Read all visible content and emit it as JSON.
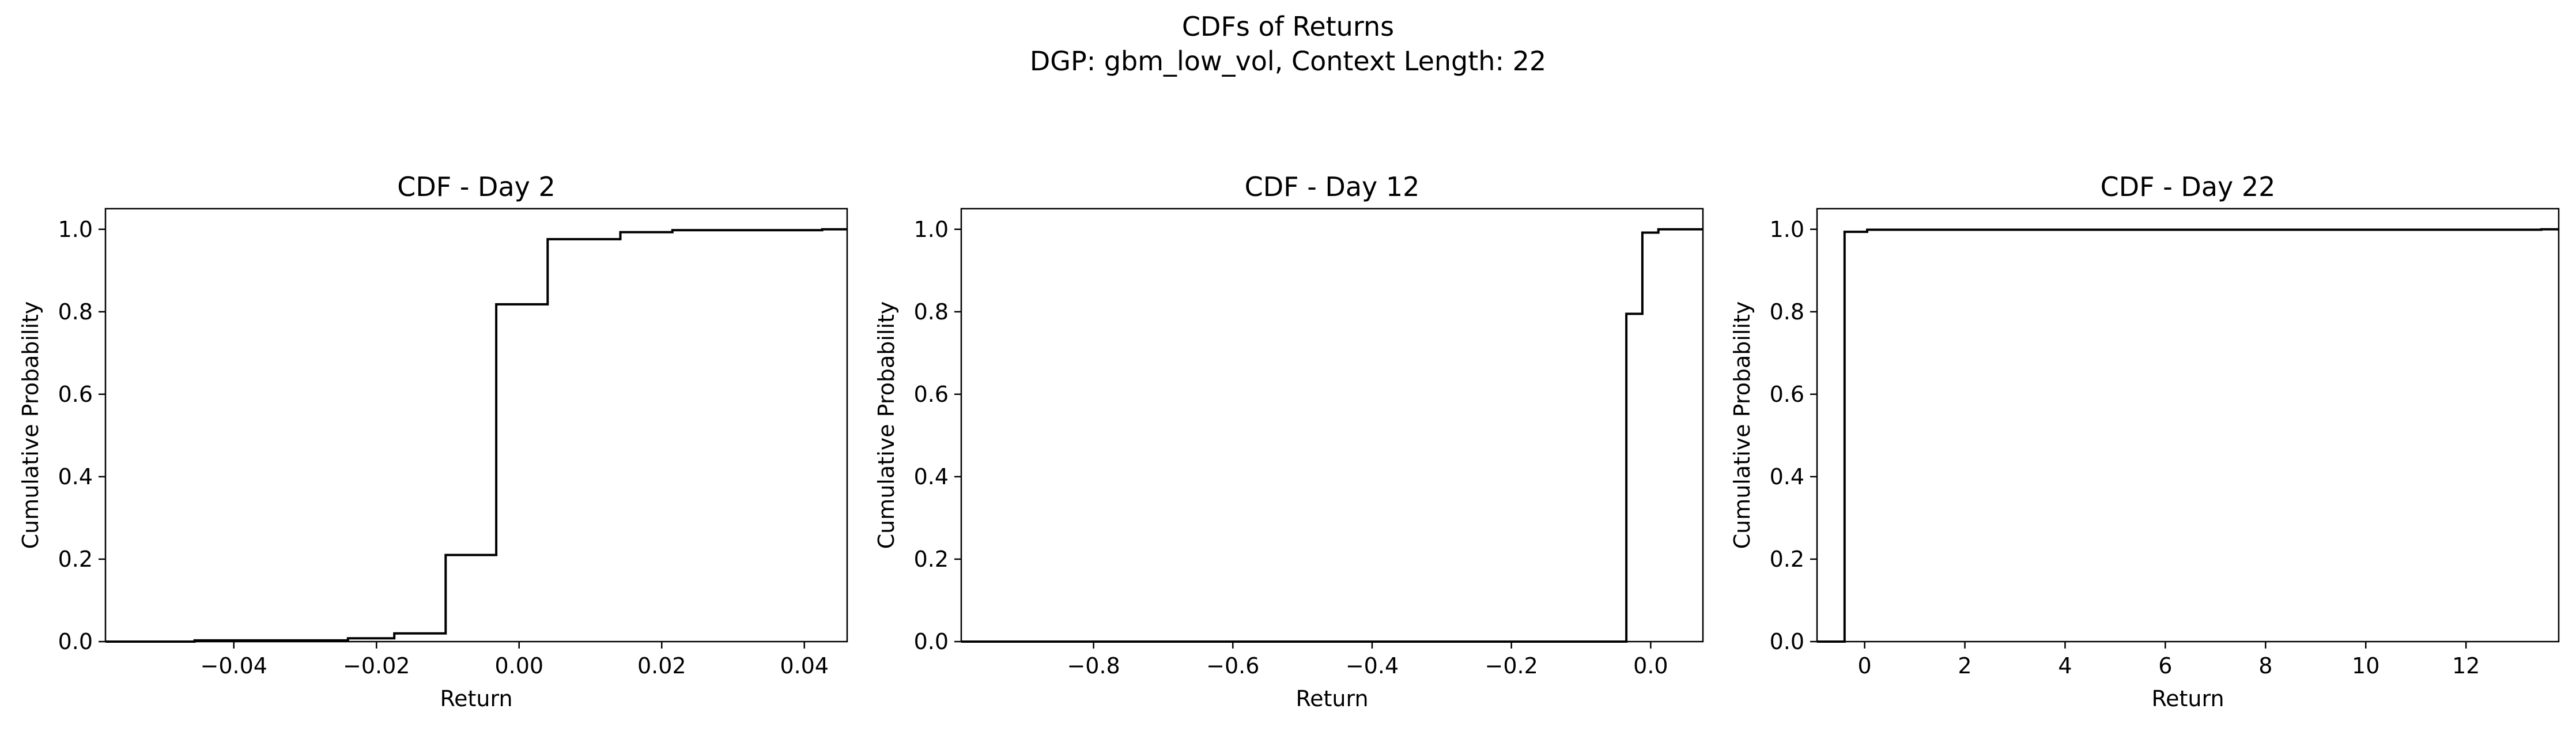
{
  "figure": {
    "suptitle_line1": "CDFs of Returns",
    "suptitle_line2": "DGP: gbm_low_vol, Context Length: 22"
  },
  "chart_data": [
    {
      "type": "line",
      "drawstyle": "steps-post",
      "title": "CDF - Day 2",
      "xlabel": "Return",
      "ylabel": "Cumulative Probability",
      "xlim": [
        -0.058,
        0.046
      ],
      "ylim": [
        0.0,
        1.05
      ],
      "xticks": [
        -0.04,
        -0.02,
        0.0,
        0.02,
        0.04
      ],
      "xtick_labels": [
        "−0.04",
        "−0.02",
        "0.00",
        "0.02",
        "0.04"
      ],
      "yticks": [
        0.0,
        0.2,
        0.4,
        0.6,
        0.8,
        1.0
      ],
      "ytick_labels": [
        "0.0",
        "0.2",
        "0.4",
        "0.6",
        "0.8",
        "1.0"
      ],
      "grid": false,
      "color": "#000000",
      "x": [
        -0.058,
        -0.0455,
        -0.024,
        -0.0175,
        -0.0103,
        -0.0032,
        0.004,
        0.0142,
        0.0215,
        0.0425,
        0.046
      ],
      "y": [
        0.0,
        0.003,
        0.008,
        0.02,
        0.21,
        0.818,
        0.976,
        0.993,
        0.998,
        1.0,
        1.0
      ]
    },
    {
      "type": "line",
      "drawstyle": "steps-post",
      "title": "CDF - Day 12",
      "xlabel": "Return",
      "ylabel": "Cumulative Probability",
      "xlim": [
        -0.99,
        0.075
      ],
      "ylim": [
        0.0,
        1.05
      ],
      "xticks": [
        -0.8,
        -0.6,
        -0.4,
        -0.2,
        0.0
      ],
      "xtick_labels": [
        "−0.8",
        "−0.6",
        "−0.4",
        "−0.2",
        "0.0"
      ],
      "yticks": [
        0.0,
        0.2,
        0.4,
        0.6,
        0.8,
        1.0
      ],
      "ytick_labels": [
        "0.0",
        "0.2",
        "0.4",
        "0.6",
        "0.8",
        "1.0"
      ],
      "grid": false,
      "color": "#000000",
      "x": [
        -0.99,
        -0.035,
        -0.012,
        0.011,
        0.075
      ],
      "y": [
        0.0,
        0.795,
        0.992,
        1.0,
        1.0
      ]
    },
    {
      "type": "line",
      "drawstyle": "steps-post",
      "title": "CDF - Day 22",
      "xlabel": "Return",
      "ylabel": "Cumulative Probability",
      "xlim": [
        -0.95,
        13.85
      ],
      "ylim": [
        0.0,
        1.05
      ],
      "xticks": [
        0,
        2,
        4,
        6,
        8,
        10,
        12
      ],
      "xtick_labels": [
        "0",
        "2",
        "4",
        "6",
        "8",
        "10",
        "12"
      ],
      "yticks": [
        0.0,
        0.2,
        0.4,
        0.6,
        0.8,
        1.0
      ],
      "ytick_labels": [
        "0.0",
        "0.2",
        "0.4",
        "0.6",
        "0.8",
        "1.0"
      ],
      "grid": false,
      "color": "#000000",
      "x": [
        -0.95,
        -0.4,
        0.05,
        13.5,
        13.85
      ],
      "y": [
        0.0,
        0.994,
        0.999,
        1.0,
        1.0
      ]
    }
  ]
}
